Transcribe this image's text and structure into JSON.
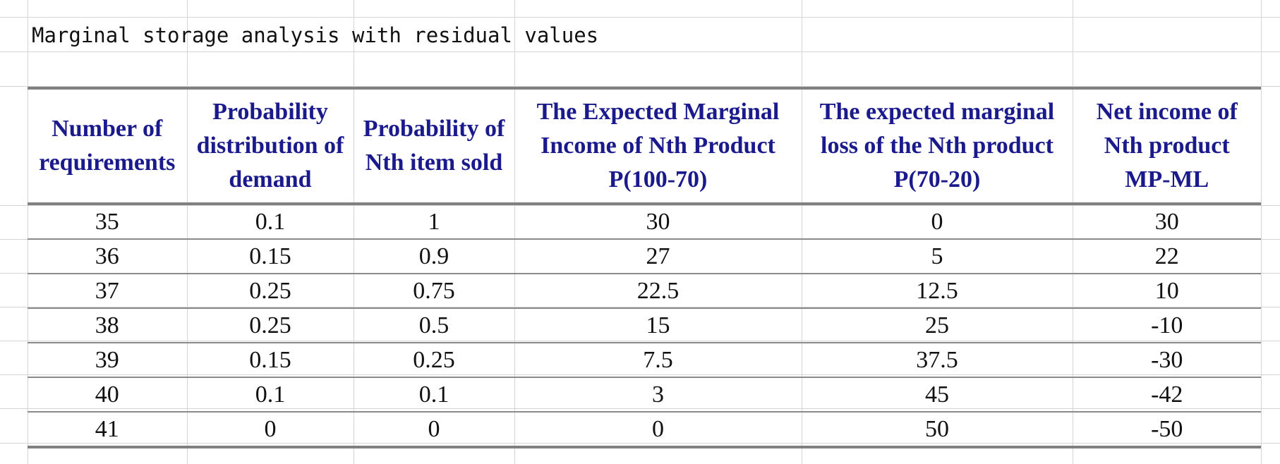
{
  "sheet": {
    "title": "Marginal storage analysis with residual values",
    "headers": [
      [
        "Number of",
        "requirements"
      ],
      [
        "Probability",
        "distribution of",
        "demand"
      ],
      [
        "Probability of",
        "Nth item sold"
      ],
      [
        "The Expected Marginal",
        "Income of Nth Product",
        "P(100-70)"
      ],
      [
        "The expected marginal",
        "loss of the Nth product",
        "P(70-20)"
      ],
      [
        "Net income of",
        "Nth product",
        "MP-ML"
      ]
    ],
    "rows": [
      [
        "35",
        "0.1",
        "1",
        "30",
        "0",
        "30"
      ],
      [
        "36",
        "0.15",
        "0.9",
        "27",
        "5",
        "22"
      ],
      [
        "37",
        "0.25",
        "0.75",
        "22.5",
        "12.5",
        "10"
      ],
      [
        "38",
        "0.25",
        "0.5",
        "15",
        "25",
        "-10"
      ],
      [
        "39",
        "0.15",
        "0.25",
        "7.5",
        "37.5",
        "-30"
      ],
      [
        "40",
        "0.1",
        "0.1",
        "3",
        "45",
        "-42"
      ],
      [
        "41",
        "0",
        "0",
        "0",
        "50",
        "-50"
      ]
    ]
  },
  "colors": {
    "header_text": "#1a1a8c",
    "body_text": "#111111",
    "grid": "#d4d4d4",
    "rule": "#808080"
  }
}
